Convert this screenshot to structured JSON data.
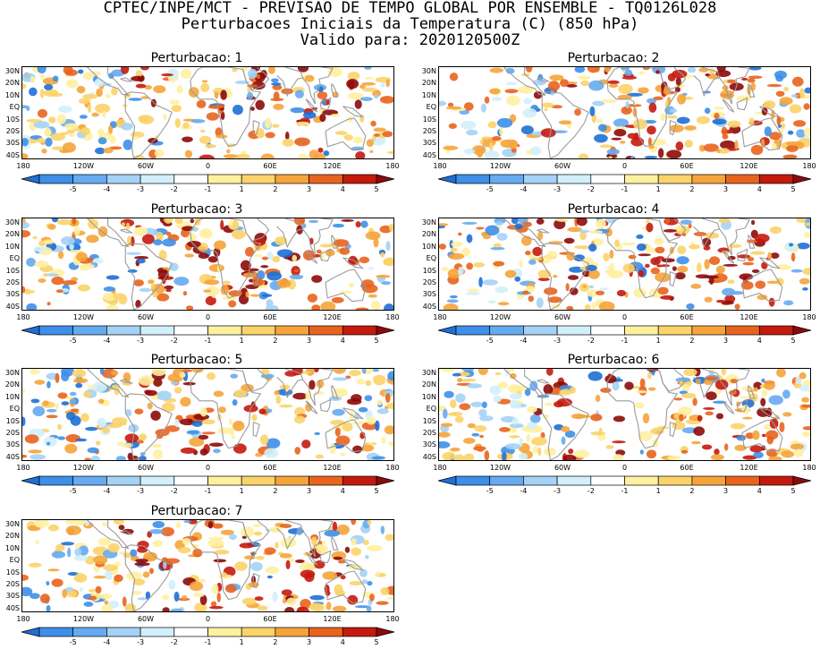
{
  "header": {
    "line1": "CPTEC/INPE/MCT - PREVISAO DE TEMPO GLOBAL POR ENSEMBLE - TQ0126L028",
    "line2": "Perturbacoes Iniciais da Temperatura (C) (850 hPa)",
    "line3": "Valido para: 2020120500Z"
  },
  "map_axes": {
    "lat_labels": [
      "30N",
      "20N",
      "10N",
      "EQ",
      "10S",
      "20S",
      "30S",
      "40S"
    ],
    "lon_labels": [
      "180",
      "120W",
      "60W",
      "0",
      "60E",
      "120E",
      "180"
    ]
  },
  "colorbar": {
    "labels": [
      "-5",
      "-4",
      "-3",
      "-2",
      "-1",
      "1",
      "2",
      "3",
      "4",
      "5"
    ],
    "colors": [
      "#1e6fd6",
      "#3d8fe8",
      "#66aaf0",
      "#a4d2f6",
      "#d2f0fb",
      "#ffffff",
      "#fff0a0",
      "#fbd36a",
      "#f5a43b",
      "#e8641e",
      "#c41a0e",
      "#8c0a0a"
    ]
  },
  "panels": [
    {
      "title": "Perturbacao: 1"
    },
    {
      "title": "Perturbacao: 2"
    },
    {
      "title": "Perturbacao: 3"
    },
    {
      "title": "Perturbacao: 4"
    },
    {
      "title": "Perturbacao: 5"
    },
    {
      "title": "Perturbacao: 6"
    },
    {
      "title": "Perturbacao: 7"
    }
  ]
}
